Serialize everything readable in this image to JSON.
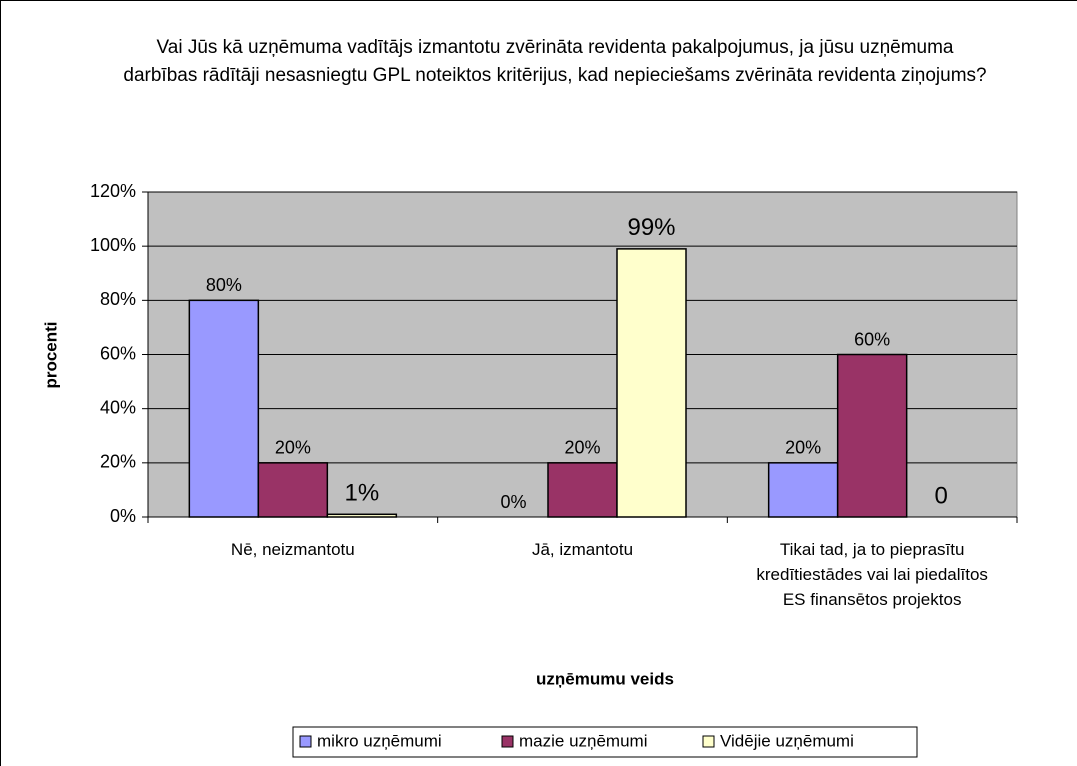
{
  "chart_data": {
    "type": "bar",
    "title": "Vai Jūs kā uzņēmuma vadītājs izmantotu zvērināta revidenta pakalpojumus, ja jūsu uzņēmuma darbības rādītāji nesasniegtu GPL noteiktos kritērijus, kad nepieciešams zvērināta revidenta ziņojums?",
    "x_label": "uzņēmumu veids",
    "y_label": "procenti",
    "categories": [
      "Nē, neizmantotu",
      "Jā, izmantotu",
      "Tikai tad, ja to pieprasītu kredītiestādes vai lai piedalītos ES finansētos projektos"
    ],
    "series": [
      {
        "name": "mikro uzņēmumi",
        "color": "#9999ff",
        "values": [
          80,
          0,
          20
        ],
        "value_labels": [
          "80%",
          "0%",
          "20%"
        ]
      },
      {
        "name": "mazie uzņēmumi",
        "color": "#993366",
        "values": [
          20,
          20,
          60
        ],
        "value_labels": [
          "20%",
          "20%",
          "60%"
        ]
      },
      {
        "name": "Vidējie uzņēmumi",
        "color": "#ffffcc",
        "values": [
          1,
          99,
          0
        ],
        "value_labels": [
          "1%",
          "99%",
          "0"
        ]
      }
    ],
    "ylim": [
      0,
      120
    ],
    "yticks": [
      {
        "value": 0,
        "label": "0%"
      },
      {
        "value": 20,
        "label": "20%"
      },
      {
        "value": 40,
        "label": "40%"
      },
      {
        "value": 60,
        "label": "60%"
      },
      {
        "value": 80,
        "label": "80%"
      },
      {
        "value": 100,
        "label": "100%"
      },
      {
        "value": 120,
        "label": "120%"
      }
    ],
    "grid": true,
    "legend": "bottom"
  }
}
